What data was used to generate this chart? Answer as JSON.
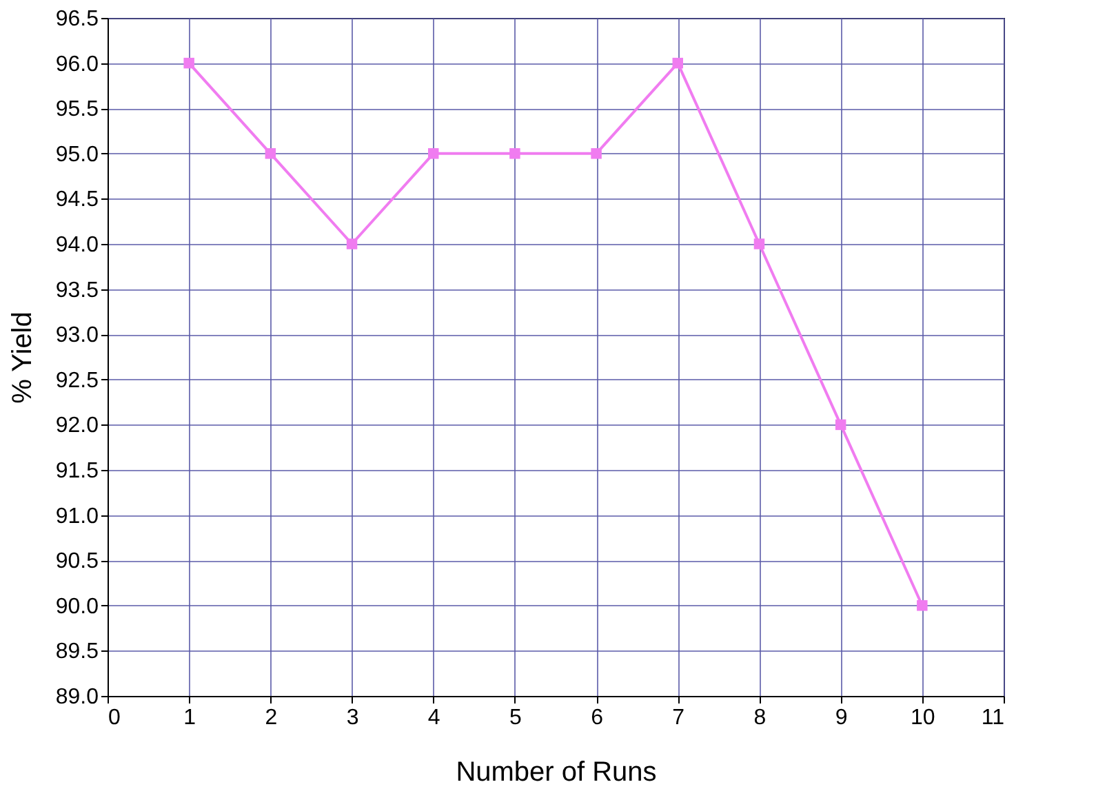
{
  "chart_data": {
    "type": "line",
    "xlabel": "Number of Runs",
    "ylabel": "% Yield",
    "x": [
      1,
      2,
      3,
      4,
      5,
      6,
      7,
      8,
      9,
      10
    ],
    "series": [
      {
        "color": "#f07cf0",
        "values": [
          96,
          95,
          94,
          95,
          95,
          95,
          96,
          94,
          92,
          90
        ]
      }
    ],
    "xlim": [
      0,
      11
    ],
    "xticks": [
      0,
      1,
      2,
      3,
      4,
      5,
      6,
      7,
      8,
      9,
      10,
      11
    ],
    "ylim": [
      89,
      96.5
    ],
    "yticks": [
      {
        "value": 89,
        "label": "89.0"
      },
      89.5,
      {
        "value": 90,
        "label": "90.0"
      },
      90.5,
      {
        "value": 91,
        "label": "91.0"
      },
      91.5,
      {
        "value": 92,
        "label": "92.0"
      },
      92.5,
      {
        "value": 93,
        "label": "93.0"
      },
      93.5,
      {
        "value": 94,
        "label": "94.0"
      },
      94.5,
      {
        "value": 95,
        "label": "95.0"
      },
      95.5,
      {
        "value": 96,
        "label": "96.0"
      },
      96.5
    ],
    "grid": true,
    "marker": "square",
    "line_style": "solid"
  }
}
